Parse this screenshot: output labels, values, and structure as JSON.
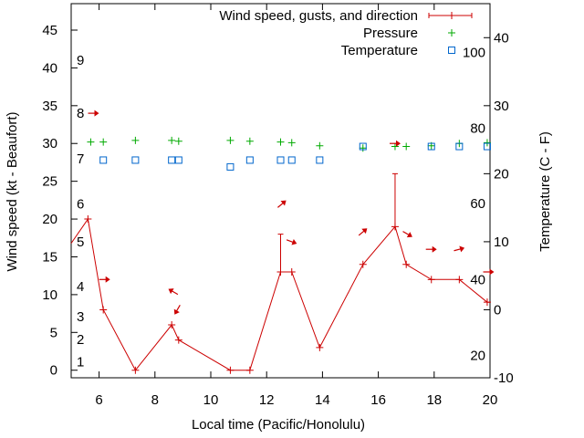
{
  "chart_data": {
    "type": "line",
    "xlabel": "Local time (Pacific/Honolulu)",
    "ylabel": "Wind speed (kt - Beaufort)",
    "y2label": "Temperature (C - F)",
    "xlim": [
      5,
      20
    ],
    "ylim": [
      -1,
      48.5
    ],
    "y2lim": [
      -10,
      45
    ],
    "x_ticks": [
      6,
      8,
      10,
      12,
      14,
      16,
      18,
      20
    ],
    "y_ticks": [
      0,
      5,
      10,
      15,
      20,
      25,
      30,
      35,
      40,
      45
    ],
    "y2_ticks": [
      -10,
      0,
      10,
      20,
      30,
      40
    ],
    "beaufort_labels": [
      {
        "text": "1",
        "y": 1.1
      },
      {
        "text": "2",
        "y": 4.1
      },
      {
        "text": "3",
        "y": 7.1
      },
      {
        "text": "4",
        "y": 11.1
      },
      {
        "text": "5",
        "y": 17
      },
      {
        "text": "6",
        "y": 22
      },
      {
        "text": "7",
        "y": 28
      },
      {
        "text": "8",
        "y": 34
      },
      {
        "text": "9",
        "y": 41
      }
    ],
    "fahrenheit_labels": [
      {
        "text": "20",
        "y2": -6.7
      },
      {
        "text": "40",
        "y2": 4.4
      },
      {
        "text": "60",
        "y2": 15.6
      },
      {
        "text": "80",
        "y2": 26.7
      },
      {
        "text": "100",
        "y2": 37.8
      }
    ],
    "legend": [
      {
        "label": "Wind speed, gusts, and direction",
        "color": "#cc0000",
        "marker": "line-plus"
      },
      {
        "label": "Pressure",
        "color": "#00aa00",
        "marker": "plus"
      },
      {
        "label": "Temperature",
        "color": "#0066cc",
        "marker": "square"
      }
    ],
    "series": [
      {
        "name": "Wind speed",
        "color": "#cc0000",
        "x": [
          5.0,
          5.6,
          6.15,
          7.3,
          8.6,
          8.85,
          10.7,
          11.4,
          12.5,
          12.9,
          13.9,
          15.45,
          16.6,
          17.0,
          17.9,
          18.9,
          19.9,
          20.0
        ],
        "y": [
          16.8,
          20,
          8,
          0,
          6,
          4,
          0,
          0,
          13,
          13,
          3,
          14,
          19,
          14,
          12,
          12,
          9,
          9
        ]
      },
      {
        "name": "Wind gusts",
        "color": "#cc0000",
        "segments": [
          {
            "x": 12.5,
            "from": 13,
            "to": 18
          },
          {
            "x": 16.6,
            "from": 19,
            "to": 26
          }
        ]
      },
      {
        "name": "Pressure",
        "color": "#00aa00",
        "x": [
          5.7,
          6.15,
          7.3,
          8.6,
          8.85,
          10.7,
          11.4,
          12.5,
          12.9,
          13.9,
          15.45,
          16.6,
          17.0,
          17.9,
          18.9,
          19.9
        ],
        "y": [
          30.2,
          30.2,
          30.4,
          30.4,
          30.3,
          30.4,
          30.3,
          30.2,
          30.1,
          29.7,
          29.4,
          29.6,
          29.6,
          29.7,
          30.0,
          30.1
        ]
      },
      {
        "name": "Temperature",
        "axis": "y2",
        "color": "#0066cc",
        "x": [
          6.15,
          7.3,
          8.6,
          8.85,
          10.7,
          11.4,
          12.5,
          12.9,
          13.9,
          15.45,
          17.9,
          18.9,
          19.9
        ],
        "y": [
          22,
          22,
          22,
          22,
          21,
          22,
          22,
          22,
          22,
          24,
          24,
          24,
          24
        ]
      },
      {
        "name": "Wind direction",
        "color": "#cc0000",
        "arrows": [
          {
            "x": 5.8,
            "y": 34,
            "angle": 0
          },
          {
            "x": 6.2,
            "y": 12,
            "angle": 0
          },
          {
            "x": 8.65,
            "y": 10.4,
            "angle": 210
          },
          {
            "x": 8.8,
            "y": 8,
            "angle": 120
          },
          {
            "x": 12.55,
            "y": 22,
            "angle": -40
          },
          {
            "x": 12.9,
            "y": 17,
            "angle": 20
          },
          {
            "x": 15.45,
            "y": 18.3,
            "angle": -40
          },
          {
            "x": 16.6,
            "y": 30,
            "angle": 0
          },
          {
            "x": 17.05,
            "y": 18,
            "angle": 30
          },
          {
            "x": 17.9,
            "y": 16,
            "angle": 0
          },
          {
            "x": 18.9,
            "y": 16,
            "angle": -15
          },
          {
            "x": 19.95,
            "y": 13,
            "angle": 0
          }
        ]
      }
    ]
  }
}
